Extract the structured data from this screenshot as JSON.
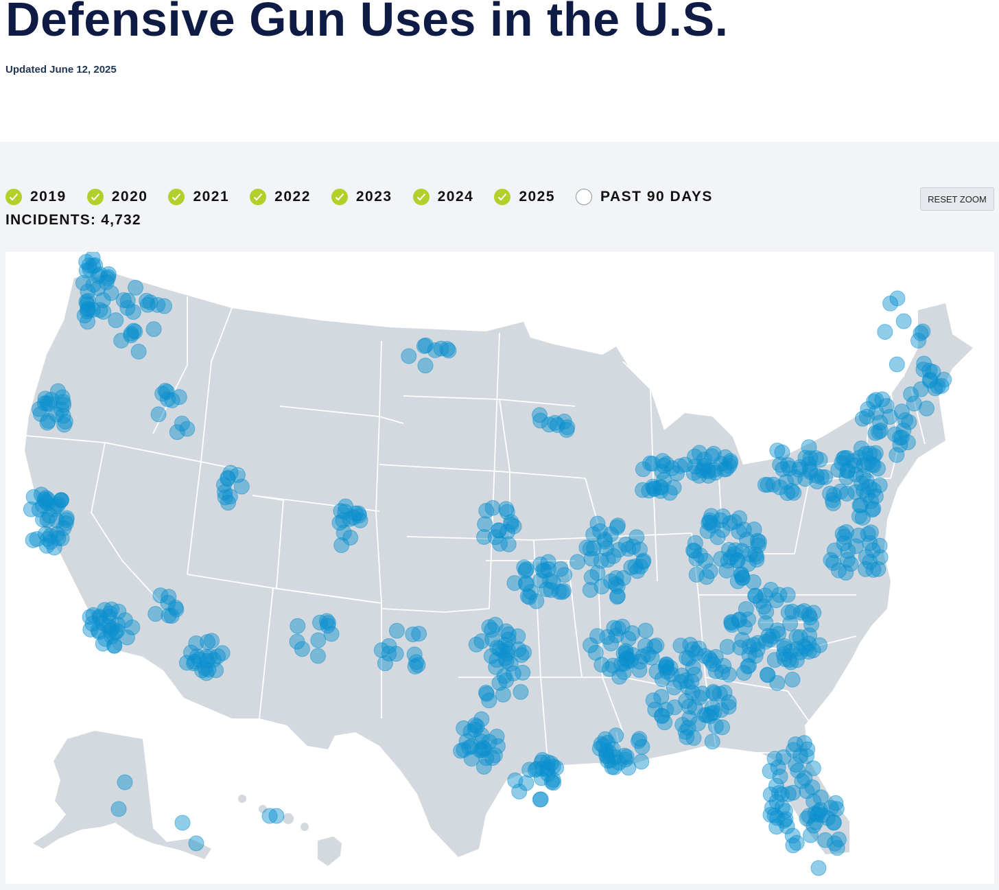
{
  "header": {
    "title": "Defensive Gun Uses in the U.S.",
    "updated": "Updated June 12, 2025"
  },
  "filters": [
    {
      "label": "2019",
      "checked": true
    },
    {
      "label": "2020",
      "checked": true
    },
    {
      "label": "2021",
      "checked": true
    },
    {
      "label": "2022",
      "checked": true
    },
    {
      "label": "2023",
      "checked": true
    },
    {
      "label": "2024",
      "checked": true
    },
    {
      "label": "2025",
      "checked": true
    },
    {
      "label": "PAST 90 DAYS",
      "checked": false
    }
  ],
  "incidents_label": "INCIDENTS: 4,732",
  "reset_zoom_label": "RESET ZOOM",
  "colors": {
    "title": "#0d1b45",
    "check_on": "#b3cf2b",
    "land": "#d3d9df",
    "state_border": "#ffffff",
    "marker": "#0a90cf",
    "panel_bg": "#f2f4f7"
  },
  "icons": {
    "filter_on": "check-circle-icon",
    "filter_off": "empty-circle-icon"
  },
  "map": {
    "type": "point map",
    "region": "United States",
    "marker_shape": "circle"
  }
}
